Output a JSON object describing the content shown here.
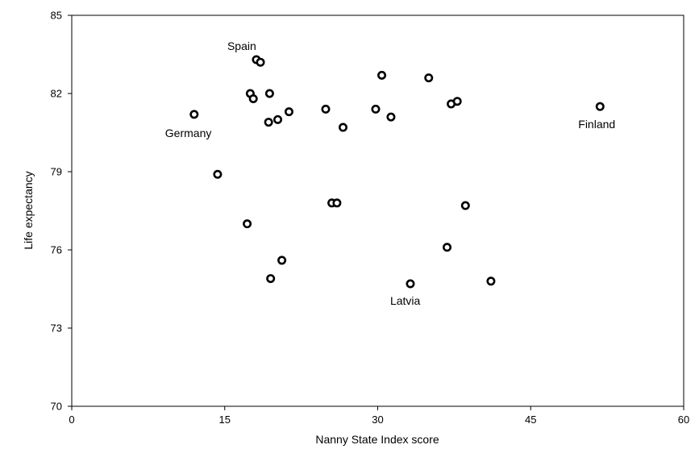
{
  "chart_data": {
    "type": "scatter",
    "xlabel": "Nanny State Index score",
    "ylabel": "Life expectancy",
    "xlim": [
      0,
      60
    ],
    "ylim": [
      70,
      85
    ],
    "xticks": [
      0,
      15,
      30,
      45,
      60
    ],
    "yticks": [
      70,
      73,
      76,
      79,
      82,
      85
    ],
    "tick_labels_x": [
      "0",
      "15",
      "30",
      "45",
      "60"
    ],
    "tick_labels_y": [
      "70",
      "73",
      "76",
      "79",
      "82",
      "85"
    ],
    "grid": false,
    "points": [
      {
        "x": 12.0,
        "y": 81.2
      },
      {
        "x": 14.3,
        "y": 78.9
      },
      {
        "x": 17.2,
        "y": 77.0
      },
      {
        "x": 17.5,
        "y": 82.0
      },
      {
        "x": 17.8,
        "y": 81.8
      },
      {
        "x": 18.1,
        "y": 83.3
      },
      {
        "x": 18.5,
        "y": 83.2
      },
      {
        "x": 19.3,
        "y": 80.9
      },
      {
        "x": 19.5,
        "y": 74.9
      },
      {
        "x": 19.4,
        "y": 82.0
      },
      {
        "x": 20.2,
        "y": 81.0
      },
      {
        "x": 20.6,
        "y": 75.6
      },
      {
        "x": 21.3,
        "y": 81.3
      },
      {
        "x": 24.9,
        "y": 81.4
      },
      {
        "x": 25.5,
        "y": 77.8
      },
      {
        "x": 26.0,
        "y": 77.8
      },
      {
        "x": 26.6,
        "y": 80.7
      },
      {
        "x": 29.8,
        "y": 81.4
      },
      {
        "x": 30.4,
        "y": 82.7
      },
      {
        "x": 31.3,
        "y": 81.1
      },
      {
        "x": 33.2,
        "y": 74.7
      },
      {
        "x": 35.0,
        "y": 82.6
      },
      {
        "x": 36.8,
        "y": 76.1
      },
      {
        "x": 37.2,
        "y": 81.6
      },
      {
        "x": 37.8,
        "y": 81.7
      },
      {
        "x": 38.6,
        "y": 77.7
      },
      {
        "x": 41.1,
        "y": 74.8
      },
      {
        "x": 51.8,
        "y": 81.5
      }
    ],
    "annotations": [
      {
        "text": "Spain",
        "x": 18.1,
        "y": 83.3,
        "dx": -36,
        "dy": -12
      },
      {
        "text": "Germany",
        "x": 12.0,
        "y": 81.2,
        "dx": -36,
        "dy": 28
      },
      {
        "text": "Finland",
        "x": 51.8,
        "y": 81.5,
        "dx": -27,
        "dy": 27
      },
      {
        "text": "Latvia",
        "x": 33.2,
        "y": 74.7,
        "dx": -25,
        "dy": 26
      }
    ]
  }
}
